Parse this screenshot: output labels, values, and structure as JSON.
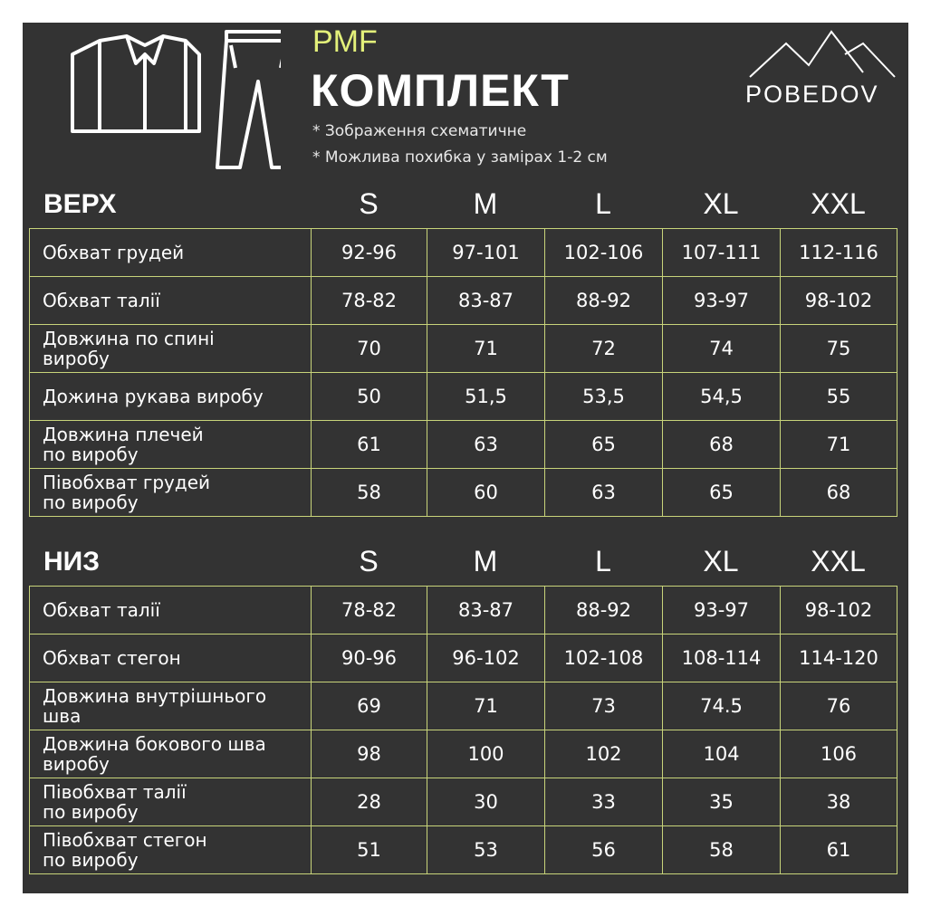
{
  "header": {
    "brand": "PMF",
    "title": "КОМПЛЕКТ",
    "notes": [
      "* Зображення схематичне",
      "* Можлива похибка у замірах 1-2 см"
    ],
    "logo": "POBEDOV"
  },
  "tables": [
    {
      "title": "ВЕРХ",
      "sizes": [
        "S",
        "M",
        "L",
        "XL",
        "XXL"
      ],
      "rows": [
        {
          "label": [
            "Обхват грудей"
          ],
          "values": [
            "92-96",
            "97-101",
            "102-106",
            "107-111",
            "112-116"
          ]
        },
        {
          "label": [
            "Обхват талії"
          ],
          "values": [
            "78-82",
            "83-87",
            "88-92",
            "93-97",
            "98-102"
          ]
        },
        {
          "label": [
            "Довжина по спині",
            "виробу"
          ],
          "values": [
            "70",
            "71",
            "72",
            "74",
            "75"
          ]
        },
        {
          "label": [
            "Дожина рукава виробу"
          ],
          "values": [
            "50",
            "51,5",
            "53,5",
            "54,5",
            "55"
          ]
        },
        {
          "label": [
            "Довжина плечей",
            "по виробу"
          ],
          "values": [
            "61",
            "63",
            "65",
            "68",
            "71"
          ]
        },
        {
          "label": [
            "Півобхват грудей",
            "по виробу"
          ],
          "values": [
            "58",
            "60",
            "63",
            "65",
            "68"
          ]
        }
      ]
    },
    {
      "title": "НИЗ",
      "sizes": [
        "S",
        "M",
        "L",
        "XL",
        "XXL"
      ],
      "rows": [
        {
          "label": [
            "Обхват талії"
          ],
          "values": [
            "78-82",
            "83-87",
            "88-92",
            "93-97",
            "98-102"
          ]
        },
        {
          "label": [
            "Обхват стегон"
          ],
          "values": [
            "90-96",
            "96-102",
            "102-108",
            "108-114",
            "114-120"
          ]
        },
        {
          "label": [
            "Довжина внутрішнього",
            "шва"
          ],
          "values": [
            "69",
            "71",
            "73",
            "74.5",
            "76"
          ]
        },
        {
          "label": [
            "Довжина бокового шва",
            "виробу"
          ],
          "values": [
            "98",
            "100",
            "102",
            "104",
            "106"
          ]
        },
        {
          "label": [
            "Півобхват талії",
            "по виробу"
          ],
          "values": [
            "28",
            "30",
            "33",
            "35",
            "38"
          ]
        },
        {
          "label": [
            "Півобхват стегон",
            "по виробу"
          ],
          "values": [
            "51",
            "53",
            "56",
            "58",
            "61"
          ]
        }
      ]
    }
  ]
}
